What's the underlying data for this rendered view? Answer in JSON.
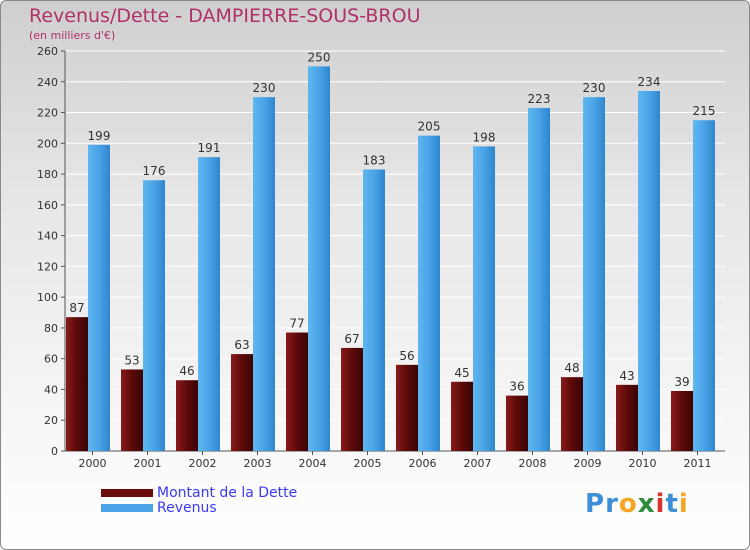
{
  "chart_data": {
    "type": "bar",
    "title": "Revenus/Dette - DAMPIERRE-SOUS-BROU",
    "subtitle": "(en milliers d'€)",
    "categories": [
      "2000",
      "2001",
      "2002",
      "2003",
      "2004",
      "2005",
      "2006",
      "2007",
      "2008",
      "2009",
      "2010",
      "2011"
    ],
    "series": [
      {
        "name": "Montant de la Dette",
        "color": "#6b0c0c",
        "values": [
          87,
          53,
          46,
          63,
          77,
          67,
          56,
          45,
          36,
          48,
          43,
          39
        ]
      },
      {
        "name": "Revenus",
        "color": "#4aa3e6",
        "values": [
          199,
          176,
          191,
          230,
          250,
          183,
          205,
          198,
          223,
          230,
          234,
          215
        ]
      }
    ],
    "ylim": [
      0,
      260
    ],
    "yticks": [
      0,
      20,
      40,
      60,
      80,
      100,
      120,
      140,
      160,
      180,
      200,
      220,
      240,
      260
    ],
    "grid": true,
    "legend": "bottom-left",
    "data_labels": true
  },
  "brand": {
    "letters": [
      {
        "ch": "P",
        "color": "#3c8fd6"
      },
      {
        "ch": "r",
        "color": "#3c8fd6"
      },
      {
        "ch": "o",
        "color": "#f5a623"
      },
      {
        "ch": "x",
        "color": "#2e8b3a"
      },
      {
        "ch": "i",
        "color": "#d9342b"
      },
      {
        "ch": "t",
        "color": "#3c8fd6"
      },
      {
        "ch": "i",
        "color": "#f5a623"
      }
    ]
  }
}
